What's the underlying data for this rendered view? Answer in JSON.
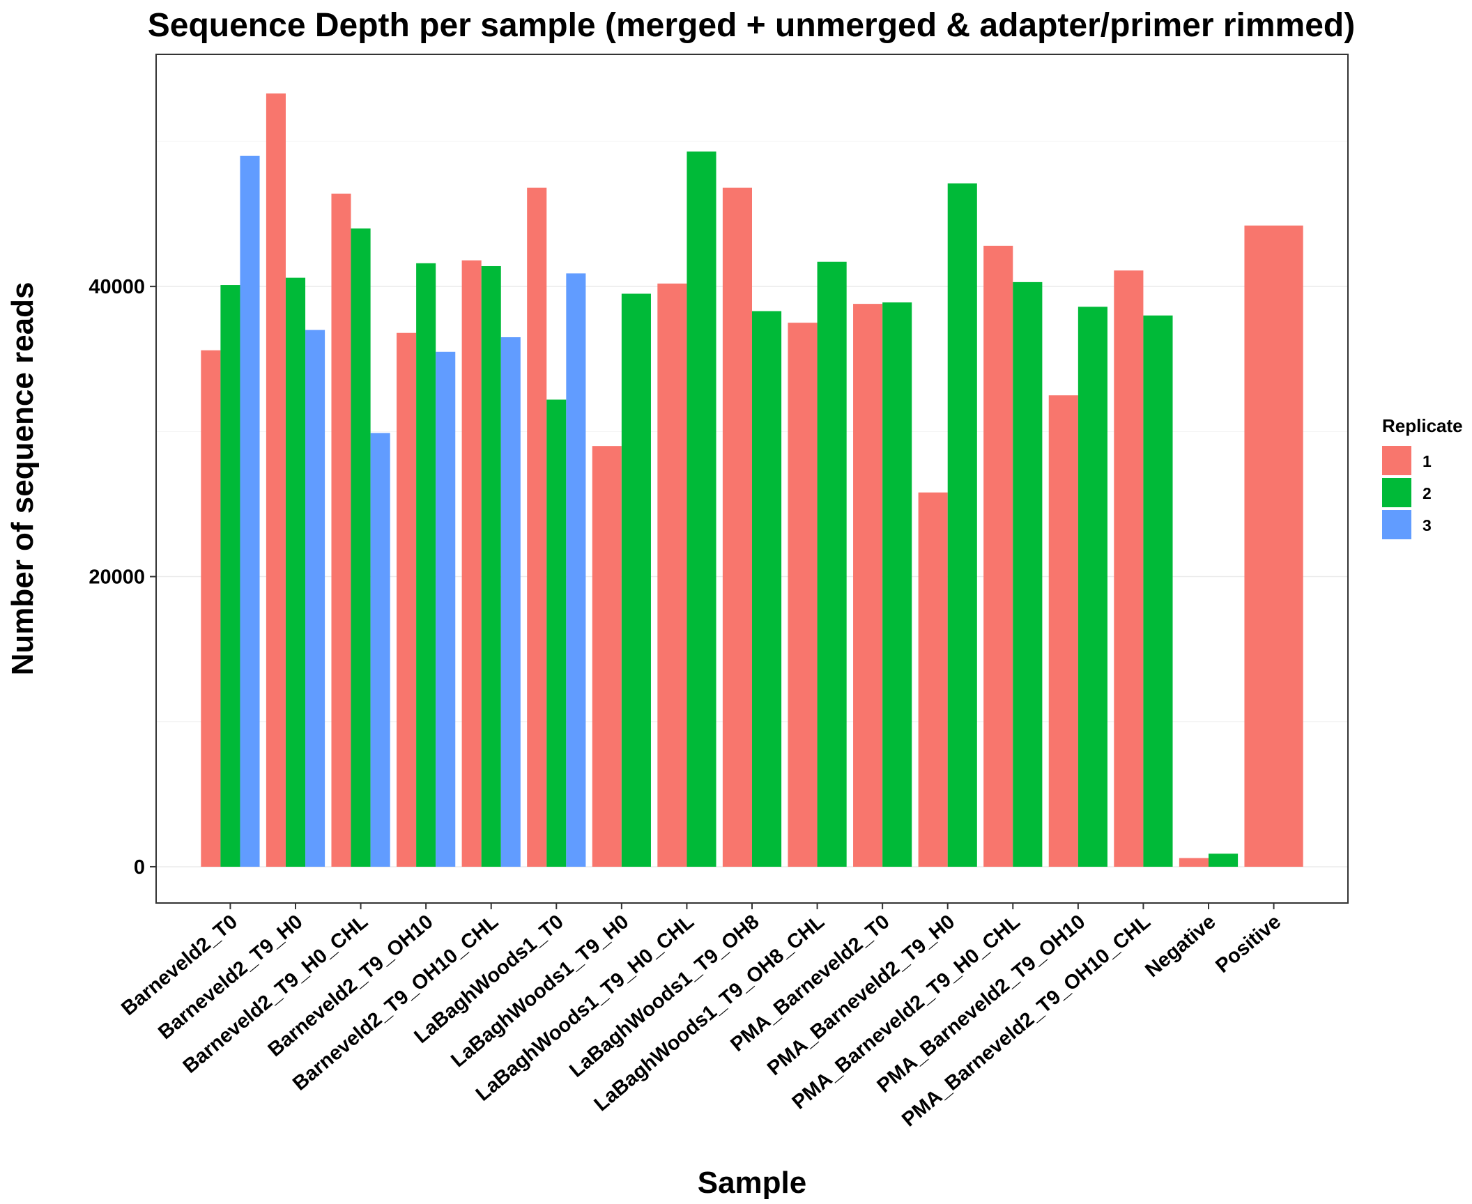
{
  "chart_data": {
    "type": "bar",
    "title": "Sequence Depth per sample (merged + unmerged & adapter/primer rimmed)",
    "xlabel": "Sample",
    "ylabel": "Number of sequence reads",
    "ylim": [
      -2500,
      56000
    ],
    "yticks": [
      0,
      20000,
      40000
    ],
    "yticks_labels": [
      "0",
      "20000",
      "40000"
    ],
    "grid": true,
    "legend": {
      "title": "Replicate",
      "position": "right",
      "items": [
        {
          "label": "1",
          "color": "#F8766D"
        },
        {
          "label": "2",
          "color": "#00BA38"
        },
        {
          "label": "3",
          "color": "#619CFF"
        }
      ]
    },
    "categories": [
      "Barneveld2_T0",
      "Barneveld2_T9_H0",
      "Barneveld2_T9_H0_CHL",
      "Barneveld2_T9_OH10",
      "Barneveld2_T9_OH10_CHL",
      "LaBaghWoods1_T0",
      "LaBaghWoods1_T9_H0",
      "LaBaghWoods1_T9_H0_CHL",
      "LaBaghWoods1_T9_OH8",
      "LaBaghWoods1_T9_OH8_CHL",
      "PMA_Barneveld2_T0",
      "PMA_Barneveld2_T9_H0",
      "PMA_Barneveld2_T9_H0_CHL",
      "PMA_Barneveld2_T9_OH10",
      "PMA_Barneveld2_T9_OH10_CHL",
      "Negative",
      "Positive"
    ],
    "bars": [
      [
        35600,
        40100,
        49000
      ],
      [
        53300,
        40600,
        37000
      ],
      [
        46400,
        44000,
        29900
      ],
      [
        36800,
        41600,
        35500
      ],
      [
        41800,
        41400,
        36500
      ],
      [
        46800,
        32200,
        40900
      ],
      [
        29000,
        39500
      ],
      [
        40200,
        49300
      ],
      [
        46800,
        38300
      ],
      [
        37500,
        41700
      ],
      [
        38800,
        38900
      ],
      [
        25800,
        47100
      ],
      [
        42800,
        40300
      ],
      [
        32500,
        38600
      ],
      [
        41100,
        38000
      ],
      [
        600,
        900
      ],
      [
        44200
      ]
    ]
  }
}
